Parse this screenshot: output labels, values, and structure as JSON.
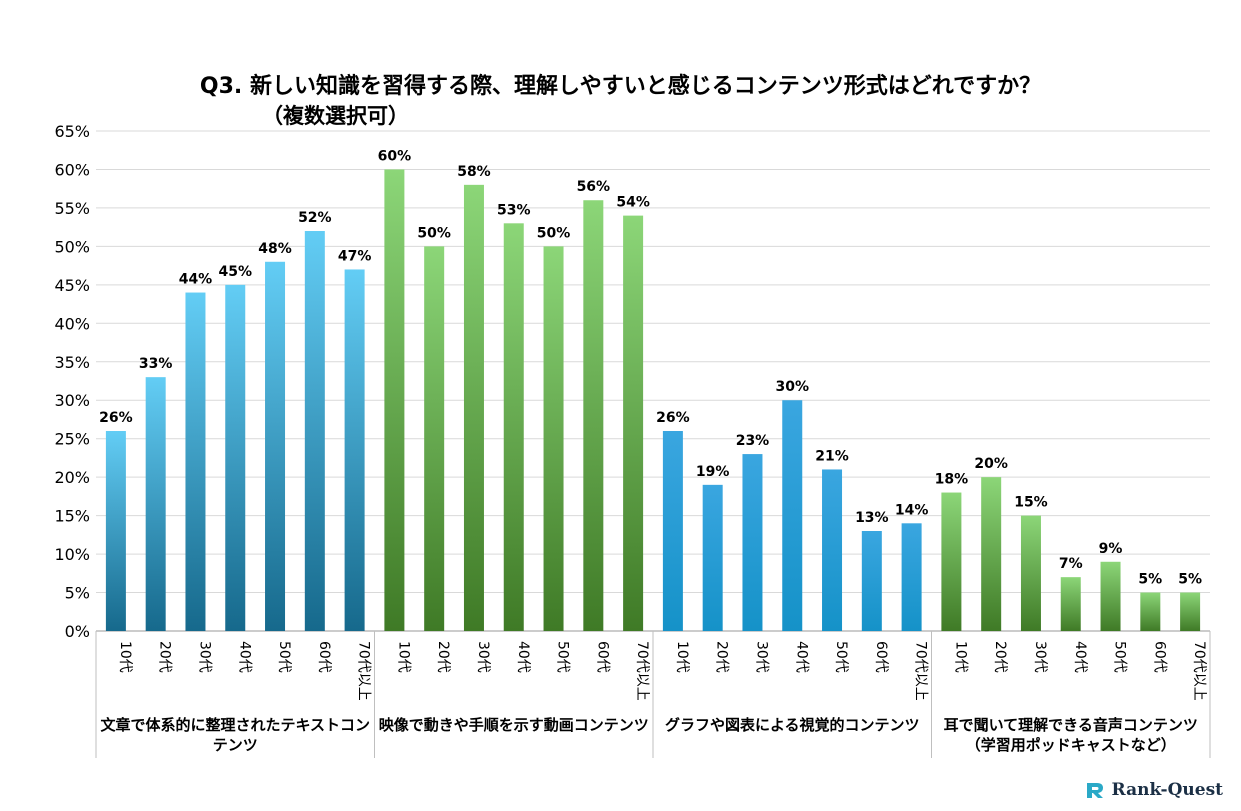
{
  "chart_data": {
    "type": "bar",
    "title": "Q3. 新しい知識を習得する際、理解しやすいと感じるコンテンツ形式はどれですか？",
    "subtitle": "（複数選択可）",
    "ylim": [
      0,
      65
    ],
    "ytick_step": 5,
    "ytick_suffix": "%",
    "age_groups": [
      "10代",
      "20代",
      "30代",
      "40代",
      "50代",
      "60代",
      "70代以上"
    ],
    "groups": [
      {
        "name": "文章で体系的に整理されたテキストコンテンツ",
        "name_lines": [
          "文章で体系的に整理されたテキストコン",
          "テンツ"
        ],
        "color_top": "#63cdf5",
        "color_bottom": "#16698c",
        "values": [
          26,
          33,
          44,
          45,
          48,
          52,
          47
        ],
        "labels": [
          "26%",
          "33%",
          "44%",
          "45%",
          "48%",
          "52%",
          "47%"
        ]
      },
      {
        "name": "映像で動きや手順を示す動画コンテンツ",
        "name_lines": [
          "映像で動きや手順を示す動画コンテンツ"
        ],
        "color_top": "#8cd678",
        "color_bottom": "#3f7a26",
        "values": [
          60,
          50,
          58,
          53,
          50,
          56,
          54
        ],
        "labels": [
          "60%",
          "50%",
          "58%",
          "53%",
          "50%",
          "56%",
          "54%"
        ]
      },
      {
        "name": "グラフや図表による視覚的コンテンツ",
        "name_lines": [
          "グラフや図表による視覚的コンテンツ"
        ],
        "color_top": "#3aa6e0",
        "color_bottom": "#1592c8",
        "values": [
          26,
          19,
          23,
          30,
          21,
          13,
          14
        ],
        "labels": [
          "26%",
          "19%",
          "23%",
          "30%",
          "21%",
          "13%",
          "14%"
        ]
      },
      {
        "name": "耳で聞いて理解できる音声コンテンツ（学習用ポッドキャストなど）",
        "name_lines": [
          "耳で聞いて理解できる音声コンテンツ",
          "（学習用ポッドキャストなど）"
        ],
        "color_top": "#8cd678",
        "color_bottom": "#3f7a26",
        "values": [
          18,
          20,
          15,
          7,
          9,
          5,
          5
        ],
        "labels": [
          "18%",
          "20%",
          "15%",
          "7%",
          "9%",
          "5%",
          "5%"
        ]
      }
    ]
  },
  "brand": {
    "name": "Rank-Quest"
  }
}
